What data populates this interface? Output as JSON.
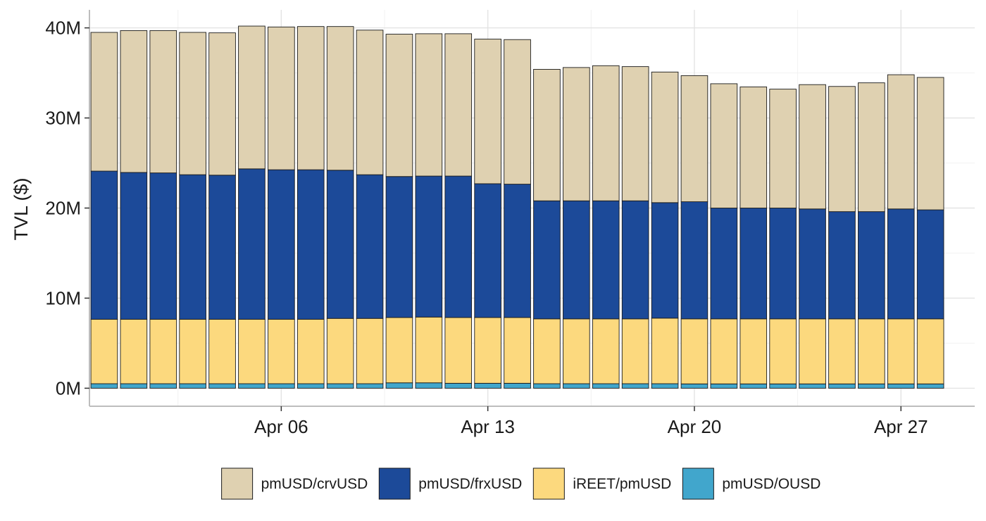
{
  "chart_data": {
    "type": "bar",
    "stacked": true,
    "ylabel": "TVL ($)",
    "xlabel": "",
    "ylim": [
      -2000000,
      42000000
    ],
    "y_ticks": [
      0,
      10000000,
      20000000,
      30000000,
      40000000
    ],
    "y_tick_labels": [
      "0M",
      "10M",
      "20M",
      "30M",
      "40M"
    ],
    "x_ticks": [
      {
        "date": "2025-04-06",
        "label": "Apr 06"
      },
      {
        "date": "2025-04-13",
        "label": "Apr 13"
      },
      {
        "date": "2025-04-20",
        "label": "Apr 20"
      },
      {
        "date": "2025-04-27",
        "label": "Apr 27"
      }
    ],
    "x_range": [
      "2025-03-30T12:00",
      "2025-04-29T12:00"
    ],
    "grid": true,
    "legend_position": "bottom",
    "categories": [
      "2025-03-31",
      "2025-04-01",
      "2025-04-02",
      "2025-04-03",
      "2025-04-04",
      "2025-04-05",
      "2025-04-06",
      "2025-04-07",
      "2025-04-08",
      "2025-04-09",
      "2025-04-10",
      "2025-04-11",
      "2025-04-12",
      "2025-04-13",
      "2025-04-14",
      "2025-04-15",
      "2025-04-16",
      "2025-04-17",
      "2025-04-18",
      "2025-04-19",
      "2025-04-20",
      "2025-04-21",
      "2025-04-22",
      "2025-04-23",
      "2025-04-24",
      "2025-04-25",
      "2025-04-26",
      "2025-04-27",
      "2025-04-28"
    ],
    "series": [
      {
        "name": "pmUSD/OUSD",
        "color": "#41a6cc",
        "values": [
          500000,
          500000,
          500000,
          500000,
          500000,
          500000,
          500000,
          500000,
          500000,
          500000,
          600000,
          600000,
          550000,
          550000,
          550000,
          500000,
          500000,
          500000,
          500000,
          500000,
          480000,
          480000,
          480000,
          480000,
          480000,
          480000,
          480000,
          480000,
          480000
        ]
      },
      {
        "name": "iREET/pmUSD",
        "color": "#fcd97e",
        "values": [
          7150000,
          7150000,
          7150000,
          7150000,
          7150000,
          7150000,
          7150000,
          7150000,
          7250000,
          7250000,
          7250000,
          7300000,
          7300000,
          7300000,
          7300000,
          7200000,
          7200000,
          7200000,
          7200000,
          7280000,
          7220000,
          7220000,
          7220000,
          7220000,
          7220000,
          7220000,
          7220000,
          7220000,
          7220000
        ]
      },
      {
        "name": "pmUSD/frxUSD",
        "color": "#1c4a99",
        "values": [
          16450000,
          16300000,
          16250000,
          16050000,
          16000000,
          16700000,
          16600000,
          16600000,
          16450000,
          15950000,
          15650000,
          15650000,
          15700000,
          14850000,
          14800000,
          13100000,
          13100000,
          13100000,
          13100000,
          12820000,
          13000000,
          12300000,
          12300000,
          12300000,
          12200000,
          11900000,
          11900000,
          12200000,
          12100000
        ]
      },
      {
        "name": "pmUSD/crvUSD",
        "color": "#dfd1b1",
        "values": [
          15400000,
          15750000,
          15800000,
          15800000,
          15800000,
          15850000,
          15850000,
          15900000,
          15950000,
          16050000,
          15800000,
          15800000,
          15800000,
          16050000,
          16050000,
          14600000,
          14800000,
          15000000,
          14900000,
          14500000,
          14000000,
          13800000,
          13450000,
          13200000,
          13800000,
          13900000,
          14300000,
          14900000,
          14700000
        ]
      }
    ]
  }
}
